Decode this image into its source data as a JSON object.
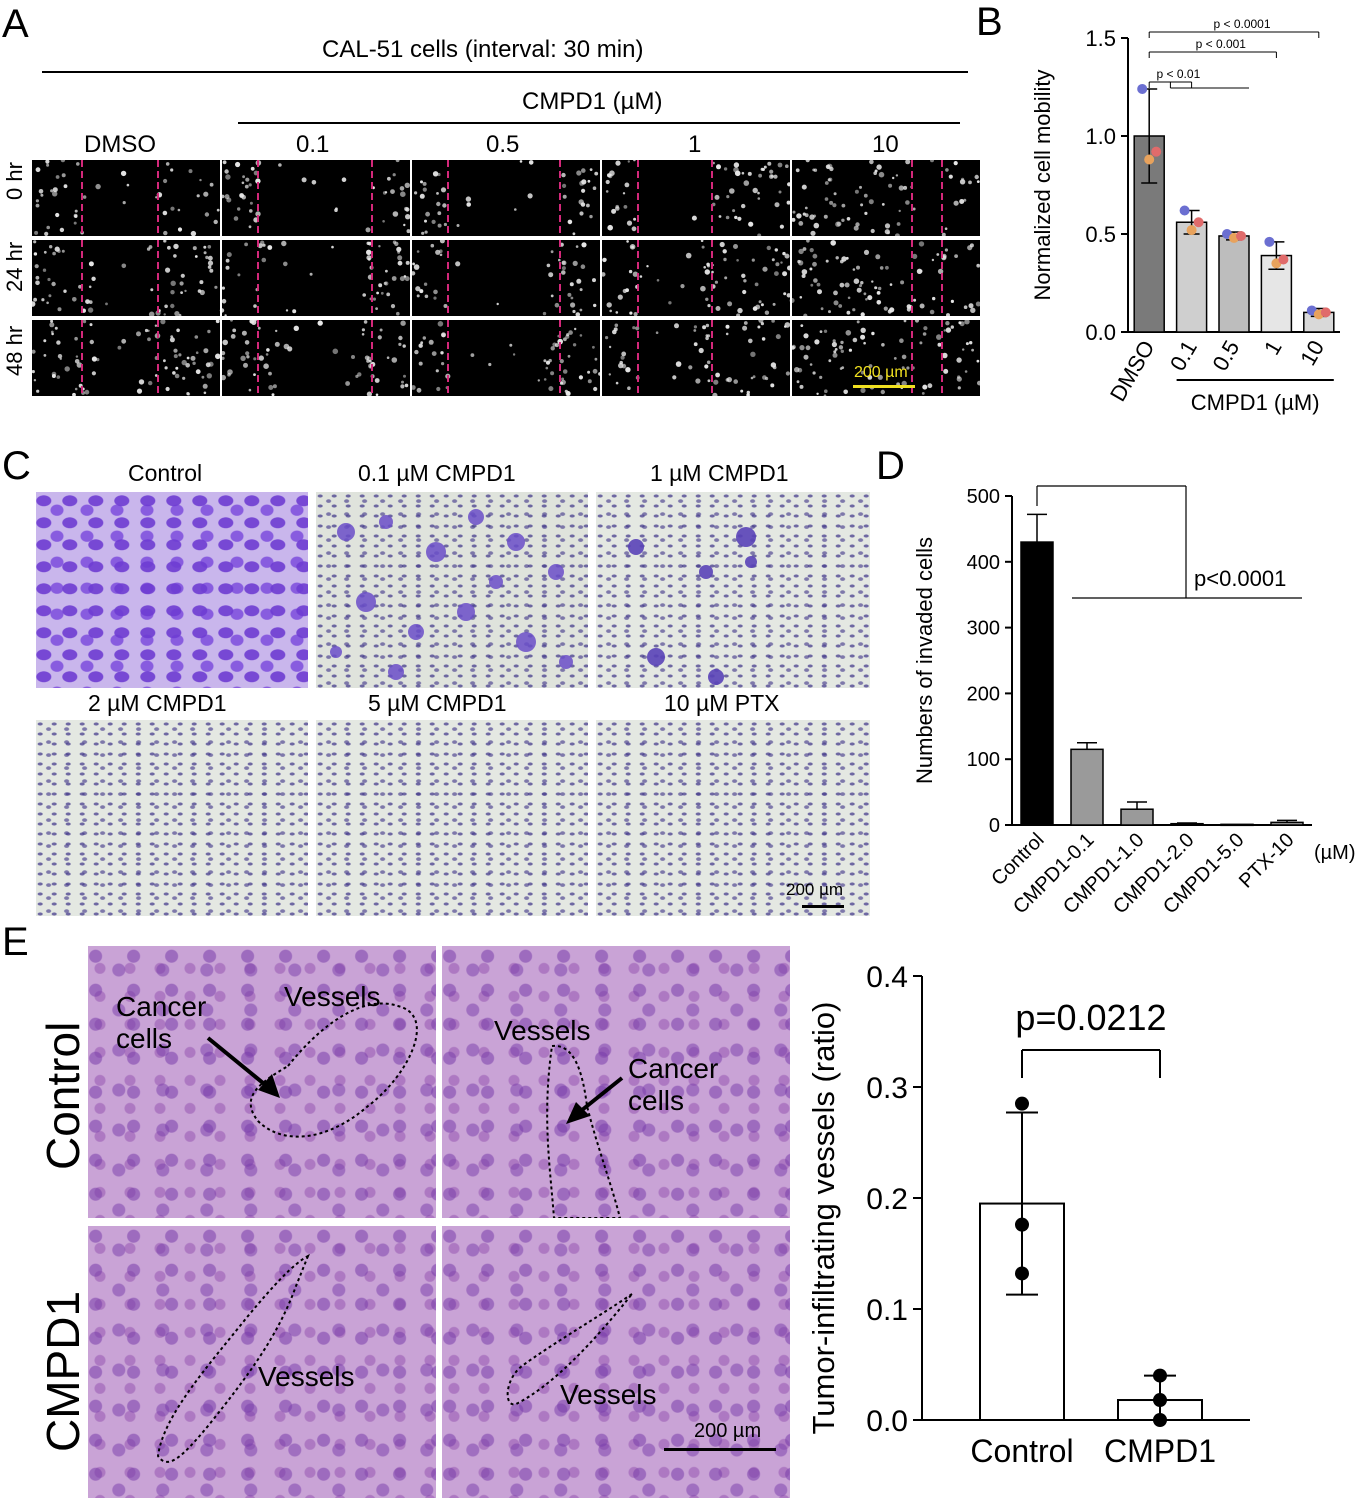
{
  "panel_a": {
    "letter": "A",
    "title": "CAL-51 cells (interval: 30 min)",
    "drug_header": "CMPD1 (µM)",
    "columns": [
      "DMSO",
      "0.1",
      "0.5",
      "1",
      "10"
    ],
    "rows": [
      "0 hr",
      "24 hr",
      "48 hr"
    ],
    "scale_bar": "200 µm",
    "colors": {
      "gap_line": "#d4287a",
      "scale_bar": "#f0e020"
    }
  },
  "panel_b": {
    "letter": "B",
    "chart_data": {
      "type": "bar",
      "ylabel": "Normalized cell mobility",
      "categories": [
        "DMSO",
        "0.1",
        "0.5",
        "1",
        "10"
      ],
      "group_label": "CMPD1 (µM)",
      "values": [
        1.0,
        0.56,
        0.49,
        0.39,
        0.1
      ],
      "errors": [
        0.24,
        0.06,
        0.02,
        0.07,
        0.02
      ],
      "points": [
        [
          1.24,
          0.88,
          0.92
        ],
        [
          0.62,
          0.52,
          0.56
        ],
        [
          0.5,
          0.48,
          0.49
        ],
        [
          0.46,
          0.35,
          0.37
        ],
        [
          0.11,
          0.09,
          0.1
        ]
      ],
      "point_colors": [
        "#6b6fd1",
        "#e8a25c",
        "#e06b6b"
      ],
      "bar_colors": [
        "#7a7a7a",
        "#cfcfcf",
        "#bdbdbd",
        "#e6e6e6",
        "#d9d9d9"
      ],
      "ylim": [
        0,
        1.5
      ],
      "yticks": [
        "0.0",
        "0.5",
        "1.0",
        "1.5"
      ],
      "significance": [
        {
          "label": "p < 0.01",
          "from": 0,
          "to": 1
        },
        {
          "label": "p < 0.001",
          "from": 0,
          "to": 3
        },
        {
          "label": "p < 0.0001",
          "from": 0,
          "to": 4
        }
      ]
    }
  },
  "panel_c": {
    "letter": "C",
    "tiles": [
      "Control",
      "0.1 µM CMPD1",
      "1 µM CMPD1",
      "2 µM CMPD1",
      "5 µM CMPD1",
      "10 µM PTX"
    ],
    "scale_bar": "200 µm"
  },
  "panel_d": {
    "letter": "D",
    "chart_data": {
      "type": "bar",
      "ylabel": "Numbers of invaded cells",
      "categories": [
        "Control",
        "CMPD1-0.1",
        "CMPD1-1.0",
        "CMPD1-2.0",
        "CMPD1-5.0",
        "PTX-10"
      ],
      "unit_label": "(µM)",
      "values": [
        430,
        115,
        24,
        2,
        1,
        4
      ],
      "errors": [
        42,
        10,
        11,
        1,
        0,
        3
      ],
      "bar_colors": [
        "#000000",
        "#9a9a9a",
        "#9a9a9a",
        "#9a9a9a",
        "#9a9a9a",
        "#9a9a9a"
      ],
      "ylim": [
        0,
        500
      ],
      "yticks": [
        "0",
        "100",
        "200",
        "300",
        "400",
        "500"
      ],
      "significance": [
        {
          "label": "p<0.0001"
        }
      ]
    }
  },
  "panel_e": {
    "letter": "E",
    "row_labels": [
      "Control",
      "CMPD1"
    ],
    "annotations": {
      "c1_vessels": "Vessels",
      "c1_cancer_1": "Cancer",
      "c1_cancer_2": "cells",
      "c2_vessels": "Vessels",
      "c2_cancer_1": "Cancer",
      "c2_cancer_2": "cells",
      "m1_vessels": "Vessels",
      "m2_vessels": "Vessels"
    },
    "scale_bar": "200 µm",
    "chart_data": {
      "type": "bar",
      "ylabel": "Tumor-infiltrating vessels (ratio)",
      "categories": [
        "Control",
        "CMPD1"
      ],
      "values": [
        0.195,
        0.018
      ],
      "errors": [
        0.082,
        0.022
      ],
      "points": [
        [
          0.285,
          0.176,
          0.132
        ],
        [
          0.04,
          0.018,
          0.0
        ]
      ],
      "ylim": [
        0,
        0.4
      ],
      "yticks": [
        "0.0",
        "0.1",
        "0.2",
        "0.3",
        "0.4"
      ],
      "significance": [
        {
          "label": "p=0.0212"
        }
      ]
    }
  }
}
